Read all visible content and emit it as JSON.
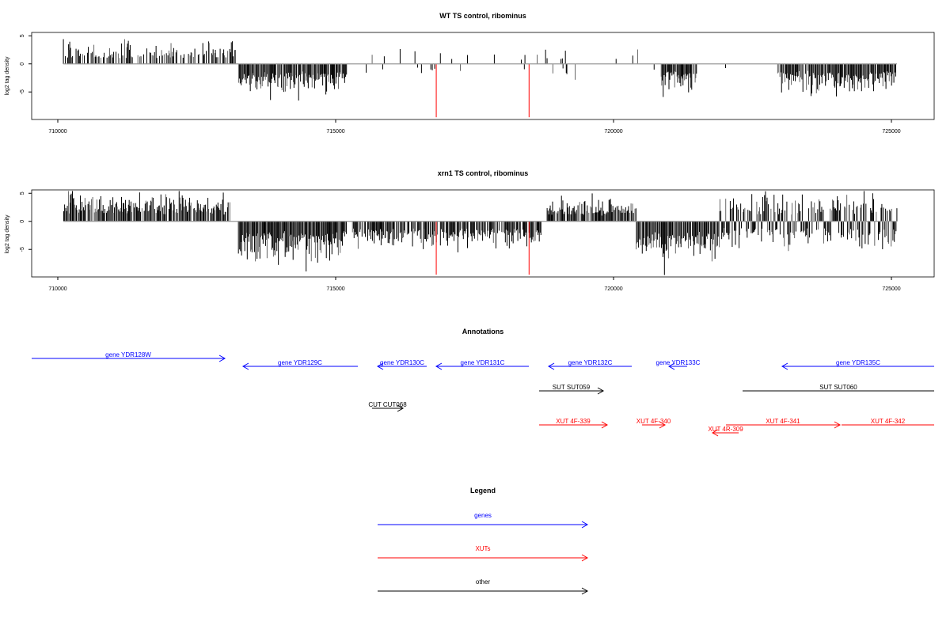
{
  "chart_data": [
    {
      "type": "bar",
      "title": "WT TS control, ribominus",
      "ylabel": "log2 tag density",
      "xlabel": "",
      "xlim": [
        708600,
        725800
      ],
      "ylim": [
        -9.9,
        5.6
      ],
      "xticks": [
        "710000",
        "715000",
        "720000",
        "725000"
      ],
      "yticks": [
        "5",
        "0",
        "-5"
      ],
      "baseline_color": "#999999",
      "bar_color": "#000000",
      "highlight_color": "#ff0000",
      "highlights": [
        {
          "x": 716810,
          "y": -9.5
        },
        {
          "x": 718480,
          "y": -9.5
        }
      ],
      "regions": [
        {
          "start": 710100,
          "end": 713200,
          "sign": 1,
          "amp": 2.2,
          "density": 0.55,
          "seed": 1
        },
        {
          "start": 713250,
          "end": 715200,
          "sign": -1,
          "amp": 3.2,
          "density": 0.95,
          "seed": 2
        },
        {
          "start": 715200,
          "end": 720800,
          "sign": 0,
          "amp": 1.5,
          "density": 0.12,
          "seed": 3
        },
        {
          "start": 720850,
          "end": 721500,
          "sign": -1,
          "amp": 3.0,
          "density": 0.9,
          "seed": 4
        },
        {
          "start": 721500,
          "end": 722900,
          "sign": 0,
          "amp": 1.0,
          "density": 0.05,
          "seed": 5
        },
        {
          "start": 722950,
          "end": 725100,
          "sign": -1,
          "amp": 3.0,
          "density": 0.95,
          "seed": 6
        }
      ]
    },
    {
      "type": "bar",
      "title": "xrn1 TS control, ribominus",
      "ylabel": "log2 tag density",
      "xlabel": "",
      "xlim": [
        708600,
        725800
      ],
      "ylim": [
        -9.9,
        5.6
      ],
      "xticks": [
        "710000",
        "715000",
        "720000",
        "725000"
      ],
      "yticks": [
        "5",
        "0",
        "-5"
      ],
      "baseline_color": "#999999",
      "bar_color": "#000000",
      "highlight_color": "#ff0000",
      "highlights": [
        {
          "x": 716810,
          "y": -9.5
        },
        {
          "x": 718480,
          "y": -9.5
        }
      ],
      "regions": [
        {
          "start": 710100,
          "end": 713100,
          "sign": 1,
          "amp": 2.8,
          "density": 0.9,
          "seed": 11
        },
        {
          "start": 713250,
          "end": 715200,
          "sign": -1,
          "amp": 4.2,
          "density": 1.0,
          "seed": 12
        },
        {
          "start": 715300,
          "end": 718700,
          "sign": -1,
          "amp": 2.8,
          "density": 0.75,
          "seed": 13
        },
        {
          "start": 718800,
          "end": 720400,
          "sign": 1,
          "amp": 2.4,
          "density": 0.8,
          "seed": 14
        },
        {
          "start": 720400,
          "end": 721900,
          "sign": -1,
          "amp": 4.5,
          "density": 0.9,
          "seed": 15
        },
        {
          "start": 721900,
          "end": 725100,
          "sign": 0,
          "amp": 2.8,
          "density": 0.95,
          "seed": 16
        }
      ]
    }
  ],
  "annotations": {
    "title": "Annotations",
    "colors": {
      "genes": "#0000ff",
      "xuts": "#ff0000",
      "other": "#000000"
    },
    "features": [
      {
        "label": "gene YDR128W",
        "start": 709530,
        "end": 713006,
        "strand": "+",
        "type": "genes",
        "row": 0,
        "arrow": true
      },
      {
        "label": "gene YDR129C",
        "start": 713333,
        "end": 715399,
        "strand": "-",
        "type": "genes",
        "row": 1,
        "arrow": true
      },
      {
        "label": "gene YDR130C",
        "start": 715755,
        "end": 716638,
        "strand": "-",
        "type": "genes",
        "row": 1,
        "arrow": true
      },
      {
        "label": "gene YDR131C",
        "start": 716809,
        "end": 718476,
        "strand": "-",
        "type": "genes",
        "row": 1,
        "arrow": true
      },
      {
        "label": "gene YDR132C",
        "start": 718832,
        "end": 720328,
        "strand": "-",
        "type": "genes",
        "row": 1,
        "arrow": true
      },
      {
        "label": "gene YDR133C",
        "start": 720997,
        "end": 721325,
        "strand": "-",
        "type": "genes",
        "row": 1,
        "arrow": true
      },
      {
        "label": "gene YDR135C",
        "start": 723034,
        "end": 725769,
        "strand": "-",
        "type": "genes",
        "row": 1,
        "arrow": true
      },
      {
        "label": "SUT SUT059",
        "start": 718661,
        "end": 719815,
        "strand": "+",
        "type": "other",
        "row": 2,
        "arrow": true
      },
      {
        "label": "SUT SUT060",
        "start": 722322,
        "end": 725769,
        "strand": "+",
        "type": "other",
        "row": 2,
        "arrow": false
      },
      {
        "label": "CUT CUT068",
        "start": 715655,
        "end": 716211,
        "strand": "+",
        "type": "other",
        "row": 3,
        "arrow": true
      },
      {
        "label": "XUT 4F-339",
        "start": 718661,
        "end": 719886,
        "strand": "+",
        "type": "xuts",
        "row": 4,
        "arrow": true
      },
      {
        "label": "XUT 4F-340",
        "start": 720513,
        "end": 720926,
        "strand": "+",
        "type": "xuts",
        "row": 4,
        "arrow": true
      },
      {
        "label": "XUT 4R-309",
        "start": 721781,
        "end": 722251,
        "strand": "-",
        "type": "xuts",
        "row": 5,
        "arrow": true
      },
      {
        "label": "XUT 4F-341",
        "start": 722023,
        "end": 724074,
        "strand": "+",
        "type": "xuts",
        "row": 4,
        "arrow": true
      },
      {
        "label": "XUT 4F-342",
        "start": 724103,
        "end": 725769,
        "strand": "+",
        "type": "xuts",
        "row": 4,
        "arrow": false
      }
    ]
  },
  "legend": {
    "title": "Legend",
    "items": [
      {
        "label": "genes",
        "type": "genes"
      },
      {
        "label": "XUTs",
        "type": "xuts"
      },
      {
        "label": "other",
        "type": "other"
      }
    ]
  }
}
